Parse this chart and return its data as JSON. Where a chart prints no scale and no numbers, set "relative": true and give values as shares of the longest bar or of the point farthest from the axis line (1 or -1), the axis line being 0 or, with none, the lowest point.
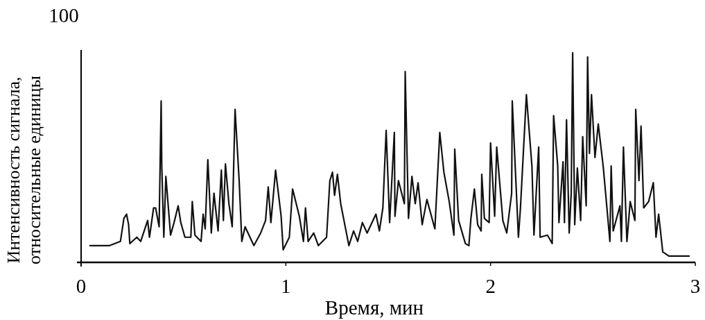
{
  "chart_data": {
    "type": "line",
    "relative": true,
    "xlabel": "Время, мин",
    "ylabel": "Интенсивность сигнала,\nотносительные единицы",
    "annotations": [
      "100"
    ],
    "xlim": [
      0,
      3
    ],
    "xticks": [
      0,
      1,
      2,
      3
    ],
    "line_style": "solid",
    "series": [
      {
        "color": "#111111",
        "x": [
          0.043,
          0.139,
          0.192,
          0.209,
          0.222,
          0.232,
          0.238,
          0.272,
          0.291,
          0.325,
          0.334,
          0.354,
          0.364,
          0.381,
          0.391,
          0.394,
          0.404,
          0.414,
          0.437,
          0.454,
          0.474,
          0.487,
          0.507,
          0.536,
          0.543,
          0.556,
          0.586,
          0.596,
          0.606,
          0.619,
          0.636,
          0.649,
          0.669,
          0.685,
          0.695,
          0.705,
          0.722,
          0.738,
          0.752,
          0.772,
          0.785,
          0.801,
          0.844,
          0.877,
          0.901,
          0.914,
          0.927,
          0.95,
          0.977,
          0.987,
          1.017,
          1.033,
          1.066,
          1.086,
          1.096,
          1.109,
          1.136,
          1.159,
          1.199,
          1.215,
          1.228,
          1.238,
          1.252,
          1.268,
          1.308,
          1.331,
          1.351,
          1.374,
          1.397,
          1.44,
          1.457,
          1.474,
          1.49,
          1.507,
          1.53,
          1.533,
          1.55,
          1.579,
          1.583,
          1.599,
          1.616,
          1.632,
          1.646,
          1.666,
          1.689,
          1.728,
          1.752,
          1.772,
          1.798,
          1.821,
          1.825,
          1.844,
          1.877,
          1.894,
          1.904,
          1.921,
          1.937,
          1.954,
          1.957,
          1.97,
          1.993,
          2.0,
          2.02,
          2.03,
          2.06,
          2.079,
          2.103,
          2.106,
          2.136,
          2.146,
          2.175,
          2.202,
          2.212,
          2.235,
          2.242,
          2.278,
          2.301,
          2.308,
          2.328,
          2.334,
          2.354,
          2.361,
          2.371,
          2.384,
          2.394,
          2.401,
          2.411,
          2.424,
          2.44,
          2.45,
          2.467,
          2.474,
          2.483,
          2.493,
          2.51,
          2.526,
          2.55,
          2.583,
          2.589,
          2.599,
          2.632,
          2.639,
          2.649,
          2.666,
          2.682,
          2.705,
          2.709,
          2.725,
          2.735,
          2.748,
          2.772,
          2.795,
          2.808,
          2.821,
          2.841,
          2.871,
          2.97
        ],
        "values": [
          0.08,
          0.08,
          0.1,
          0.21,
          0.23,
          0.18,
          0.09,
          0.12,
          0.1,
          0.2,
          0.12,
          0.26,
          0.26,
          0.17,
          0.77,
          0.46,
          0.12,
          0.41,
          0.13,
          0.19,
          0.27,
          0.19,
          0.12,
          0.12,
          0.29,
          0.13,
          0.1,
          0.23,
          0.16,
          0.49,
          0.14,
          0.33,
          0.15,
          0.44,
          0.2,
          0.47,
          0.28,
          0.17,
          0.73,
          0.39,
          0.1,
          0.17,
          0.08,
          0.14,
          0.2,
          0.36,
          0.19,
          0.44,
          0.22,
          0.06,
          0.12,
          0.35,
          0.22,
          0.1,
          0.26,
          0.1,
          0.14,
          0.08,
          0.12,
          0.39,
          0.43,
          0.32,
          0.42,
          0.28,
          0.08,
          0.15,
          0.1,
          0.19,
          0.14,
          0.23,
          0.15,
          0.26,
          0.63,
          0.19,
          0.62,
          0.22,
          0.39,
          0.28,
          0.91,
          0.21,
          0.41,
          0.28,
          0.38,
          0.18,
          0.3,
          0.16,
          0.62,
          0.43,
          0.29,
          0.13,
          0.54,
          0.2,
          0.09,
          0.08,
          0.21,
          0.35,
          0.18,
          0.15,
          0.42,
          0.21,
          0.19,
          0.57,
          0.22,
          0.55,
          0.2,
          0.14,
          0.33,
          0.77,
          0.12,
          0.26,
          0.8,
          0.46,
          0.13,
          0.55,
          0.12,
          0.13,
          0.09,
          0.7,
          0.46,
          0.19,
          0.48,
          0.19,
          0.68,
          0.14,
          0.33,
          1,
          0.18,
          0.45,
          0.2,
          0.6,
          0.27,
          0.98,
          0.52,
          0.8,
          0.5,
          0.66,
          0.46,
          0.1,
          0.46,
          0.15,
          0.27,
          0.1,
          0.55,
          0.1,
          0.29,
          0.2,
          0.73,
          0.39,
          0.65,
          0.26,
          0.29,
          0.38,
          0.12,
          0.23,
          0.05,
          0.03,
          0.03
        ]
      }
    ]
  }
}
